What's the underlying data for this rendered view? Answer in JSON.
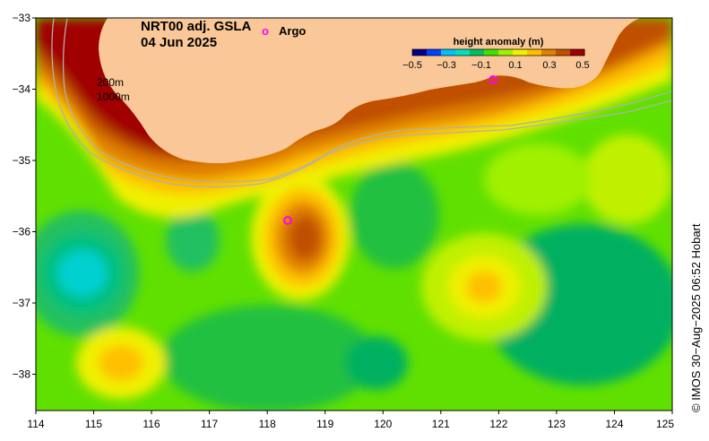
{
  "title": {
    "line1": "NRT00 adj. GSLA",
    "line2": "04 Jun 2025"
  },
  "legend": {
    "argo_marker": "o",
    "argo_label": "Argo"
  },
  "colorbar": {
    "title": "height anomaly (m)",
    "ticks": [
      "−0.5",
      "−0.3",
      "−0.1",
      "0.1",
      "0.3",
      "0.5"
    ],
    "colors": [
      "#00008b",
      "#0040ff",
      "#00c0ff",
      "#00e0c0",
      "#00c060",
      "#40e000",
      "#a0f000",
      "#f0f000",
      "#ffc000",
      "#e08000",
      "#c05000",
      "#a00000"
    ]
  },
  "contours": {
    "label_200": "200m",
    "label_1000": "1000m"
  },
  "axes": {
    "x_ticks": [
      "114",
      "115",
      "116",
      "117",
      "118",
      "119",
      "120",
      "121",
      "122",
      "123",
      "124",
      "125"
    ],
    "y_ticks": [
      "−33",
      "−34",
      "−35",
      "−36",
      "−37",
      "−38"
    ]
  },
  "credit": "© IMOS 30−Aug−2025 06:52 Hobart",
  "colors": {
    "land": "#fac898",
    "high": "#a00000",
    "low": "#00d0d0"
  }
}
